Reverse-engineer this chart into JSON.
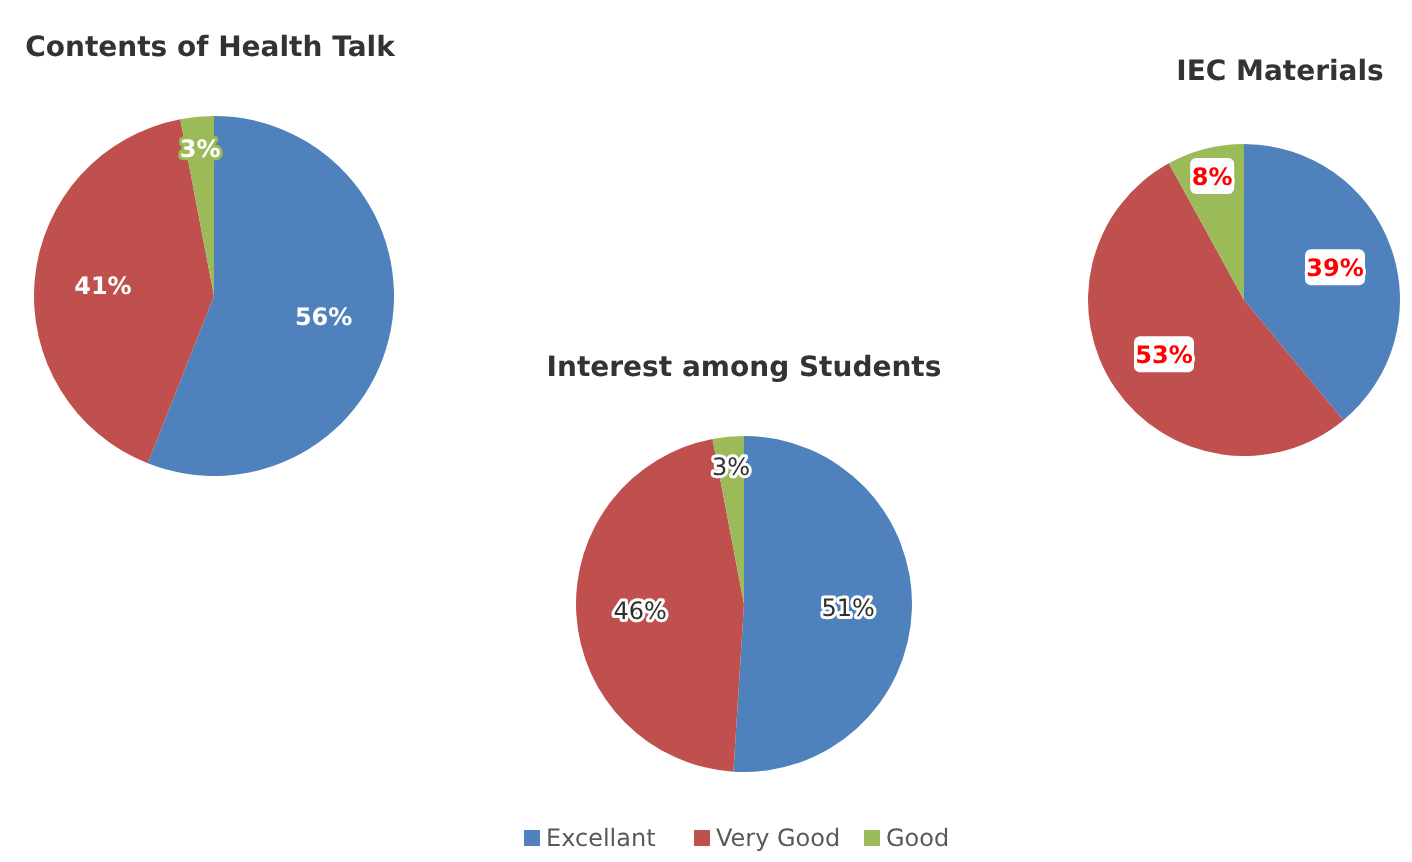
{
  "chart_data": [
    {
      "type": "pie",
      "title": "Contents of Health Talk",
      "categories": [
        null,
        null,
        null
      ],
      "values": [
        56,
        41,
        3
      ],
      "value_labels": [
        "56%",
        "41%",
        "3%"
      ],
      "colors": [
        "#4f81bd",
        "#c0504d",
        "#9bbb59"
      ],
      "legend": false
    },
    {
      "type": "pie",
      "title": "Interest among Students",
      "categories": [
        "Excellant",
        "Very Good",
        "Good"
      ],
      "values": [
        51,
        46,
        3
      ],
      "value_labels": [
        "51%",
        "46%",
        "3%"
      ],
      "colors": [
        "#4f81bd",
        "#c0504d",
        "#9bbb59"
      ],
      "legend": "bottom"
    },
    {
      "type": "pie",
      "title": "IEC Materials",
      "categories": [
        null,
        null,
        null
      ],
      "values": [
        39,
        53,
        8
      ],
      "value_labels": [
        "39%",
        "53%",
        "8%"
      ],
      "colors": [
        "#4f81bd",
        "#c0504d",
        "#9bbb59"
      ],
      "legend": false
    }
  ]
}
